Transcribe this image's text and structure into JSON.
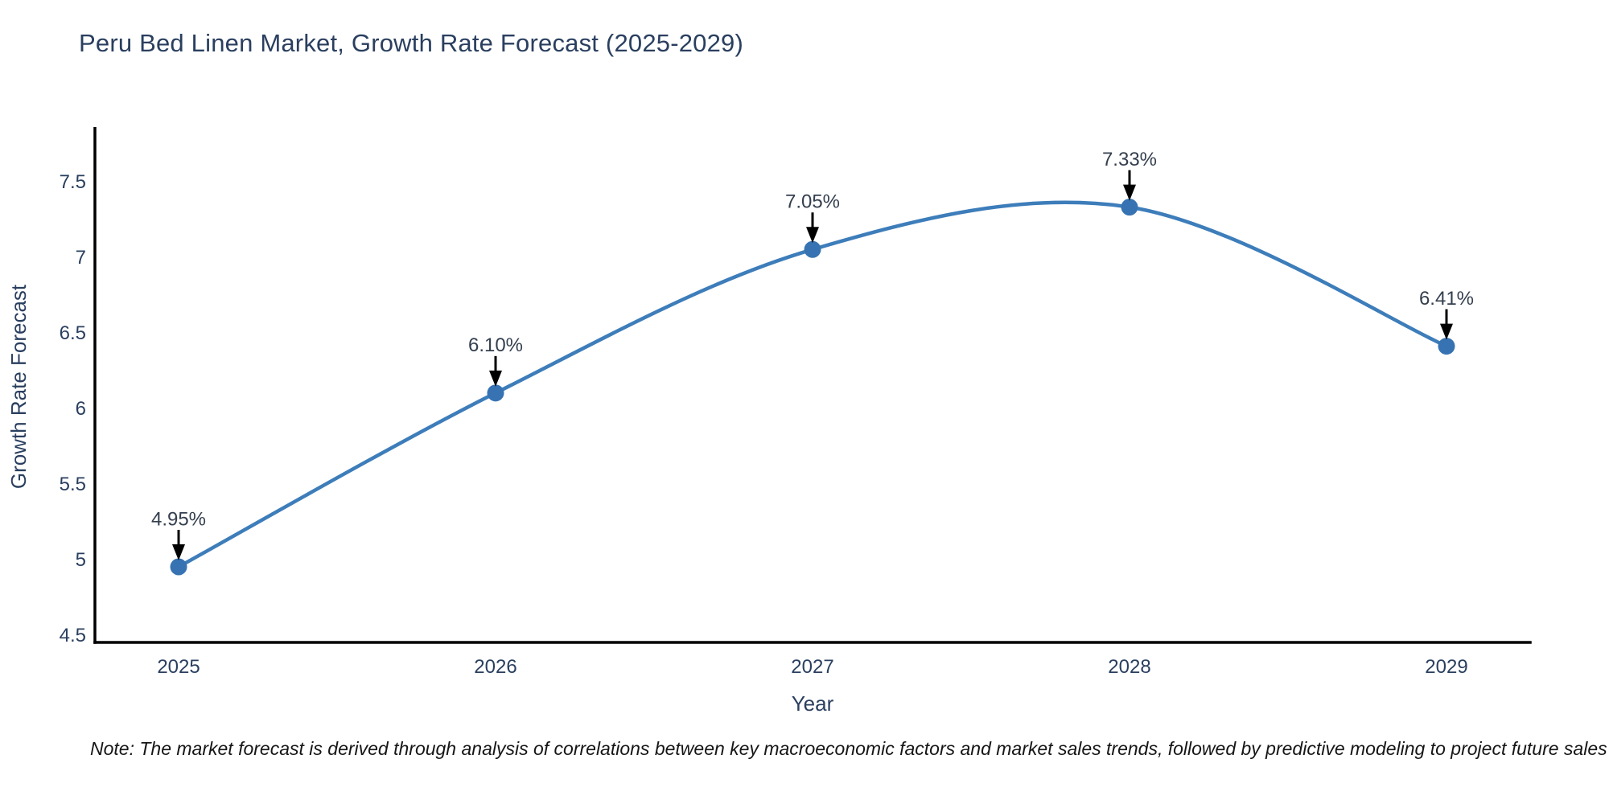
{
  "figure": {
    "title": "Peru Bed Linen Market, Growth Rate Forecast (2025-2029)",
    "note": "Note: The market forecast is derived through analysis of correlations between key macroeconomic factors and market sales trends, followed by predictive modeling to project future sales"
  },
  "chart_data": {
    "type": "line",
    "title": "Peru Bed Linen Market, Growth Rate Forecast (2025-2029)",
    "xlabel": "Year",
    "ylabel": "Growth Rate Forecast",
    "x": [
      2025,
      2026,
      2027,
      2028,
      2029
    ],
    "values": [
      4.95,
      6.1,
      7.05,
      7.33,
      6.41
    ],
    "point_labels": [
      "4.95%",
      "6.10%",
      "7.05%",
      "7.33%",
      "6.41%"
    ],
    "xticks": [
      2025,
      2026,
      2027,
      2028,
      2029
    ],
    "xtick_labels": [
      "2025",
      "2026",
      "2027",
      "2028",
      "2029"
    ],
    "yticks": [
      4.5,
      5,
      5.5,
      6,
      6.5,
      7,
      7.5
    ],
    "ytick_labels": [
      "4.5",
      "5",
      "5.5",
      "6",
      "6.5",
      "7",
      "7.5"
    ],
    "xlim": [
      2024.736,
      2029.264
    ],
    "ylim": [
      4.45,
      7.86
    ],
    "line_shape": "spline",
    "grid": false,
    "legend": "none",
    "colors": {
      "line": "#3d7dba",
      "marker": "#3773b2",
      "axis": "#000000",
      "arrow": "#000000",
      "annotation_text": "#343f4e",
      "tick_text": "#2a3f5f",
      "title_text": "#2a3f5f"
    }
  }
}
